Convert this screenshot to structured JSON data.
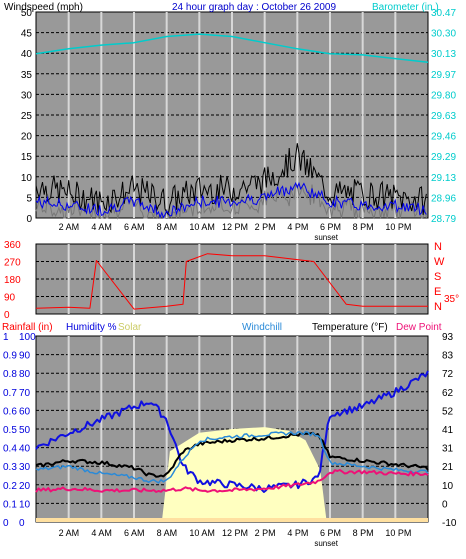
{
  "chart_data": [
    {
      "type": "line",
      "title": "24 hour graph day : October 26 2009",
      "left_label": "Windspeed (mph)",
      "right_label": "Barometer (in.)",
      "ylim": [
        0,
        50
      ],
      "y_ticks": [
        0,
        5,
        10,
        15,
        20,
        25,
        30,
        35,
        40,
        45,
        50
      ],
      "y2lim": [
        28.79,
        30.47
      ],
      "y2_ticks": [
        "28.79",
        "28.96",
        "29.13",
        "29.29",
        "29.46",
        "29.63",
        "29.80",
        "29.97",
        "30.13",
        "30.30",
        "30.47"
      ],
      "x_ticks": [
        "2 AM",
        "4 AM",
        "6 AM",
        "8 AM",
        "10 AM",
        "12 PM",
        "2 PM",
        "4 PM",
        "6 PM",
        "8 PM",
        "10 PM"
      ],
      "sunset_label": "sunset",
      "sunset_hour": 17.9,
      "colors": {
        "wind_gust": "#000000",
        "wind_avg": "#0000ee",
        "wind_speed": "#777777",
        "barometer": "#00cccc"
      },
      "x": [
        0,
        2,
        4,
        6,
        8,
        10,
        12,
        14,
        16,
        18,
        20,
        22,
        24
      ],
      "series": [
        {
          "name": "Barometer",
          "axis": "right",
          "values": [
            30.13,
            30.17,
            30.2,
            30.22,
            30.27,
            30.29,
            30.27,
            30.22,
            30.17,
            30.13,
            30.12,
            30.09,
            30.06
          ]
        },
        {
          "name": "Gust",
          "axis": "left",
          "values": [
            8,
            6,
            4,
            7,
            4,
            7,
            7,
            9,
            15,
            6,
            6,
            5,
            4
          ]
        },
        {
          "name": "Avg",
          "axis": "left",
          "values": [
            4,
            3,
            2,
            4,
            1,
            4,
            4,
            5,
            8,
            4,
            3,
            3,
            2
          ]
        }
      ]
    },
    {
      "type": "line",
      "ylim": [
        0,
        360
      ],
      "y_ticks": [
        0,
        90,
        180,
        270,
        360
      ],
      "compass_labels": [
        "N",
        "W",
        "S",
        "E",
        "N"
      ],
      "temp_label": "35°",
      "colors": {
        "direction": "#ff0000"
      },
      "x": [
        0,
        2,
        3.3,
        3.7,
        6,
        8,
        9,
        9.2,
        10.5,
        12,
        14,
        16,
        17,
        19,
        20,
        22,
        24
      ],
      "series": [
        {
          "name": "Wind Direction",
          "values": [
            30,
            35,
            30,
            275,
            25,
            40,
            50,
            270,
            310,
            300,
            300,
            280,
            270,
            50,
            40,
            40,
            40
          ]
        }
      ]
    },
    {
      "type": "line",
      "labels": {
        "rain": "Rainfall (in)",
        "humidity": "Humidity %",
        "solar": "Solar",
        "windchill": "Windchill",
        "temperature": "Temperature (°F)",
        "dewpoint": "Dew Point"
      },
      "ylim": [
        0,
        100
      ],
      "y_ticks": [
        0,
        10,
        20,
        30,
        40,
        50,
        60,
        70,
        80,
        90,
        100
      ],
      "rain_ticks": [
        "0",
        "0.1",
        "0.2",
        "0.3",
        "0.4",
        "0.5",
        "0.6",
        "0.7",
        "0.8",
        "0.9",
        "1"
      ],
      "y2_ticks": [
        "-10",
        "0",
        "10",
        "21",
        "31",
        "41",
        "52",
        "62",
        "72",
        "83",
        "93"
      ],
      "colors": {
        "humidity": "#1010e0",
        "temperature": "#000000",
        "windchill": "#2a8ad8",
        "dewpoint": "#ee1177",
        "solar": "#ffffc0",
        "rain": "#ffe0a0"
      },
      "x": [
        0,
        2,
        4,
        6,
        7,
        8,
        9,
        10,
        12,
        14,
        16,
        17.3,
        18,
        20,
        22,
        24
      ],
      "series": [
        {
          "name": "Humidity",
          "values": [
            40,
            48,
            55,
            62,
            65,
            55,
            30,
            22,
            20,
            18,
            20,
            24,
            58,
            62,
            70,
            80
          ]
        },
        {
          "name": "Temperature",
          "values": [
            30,
            33,
            32,
            29,
            25,
            25,
            38,
            42,
            44,
            45,
            47,
            47,
            35,
            33,
            31,
            29
          ]
        },
        {
          "name": "Windchill",
          "values": [
            28,
            30,
            26,
            24,
            22,
            22,
            34,
            44,
            46,
            47,
            48,
            47,
            32,
            30,
            28,
            27
          ]
        },
        {
          "name": "Dew Point",
          "values": [
            17,
            18,
            17,
            17,
            17,
            17,
            18,
            17,
            17,
            18,
            20,
            22,
            27,
            27,
            26,
            26
          ]
        }
      ],
      "solar": {
        "x": [
          7.7,
          8.2,
          10,
          12,
          14,
          15.5,
          16.5,
          17.4,
          17.8
        ],
        "values": [
          0,
          38,
          48,
          50,
          51,
          49,
          44,
          28,
          0
        ]
      }
    }
  ]
}
